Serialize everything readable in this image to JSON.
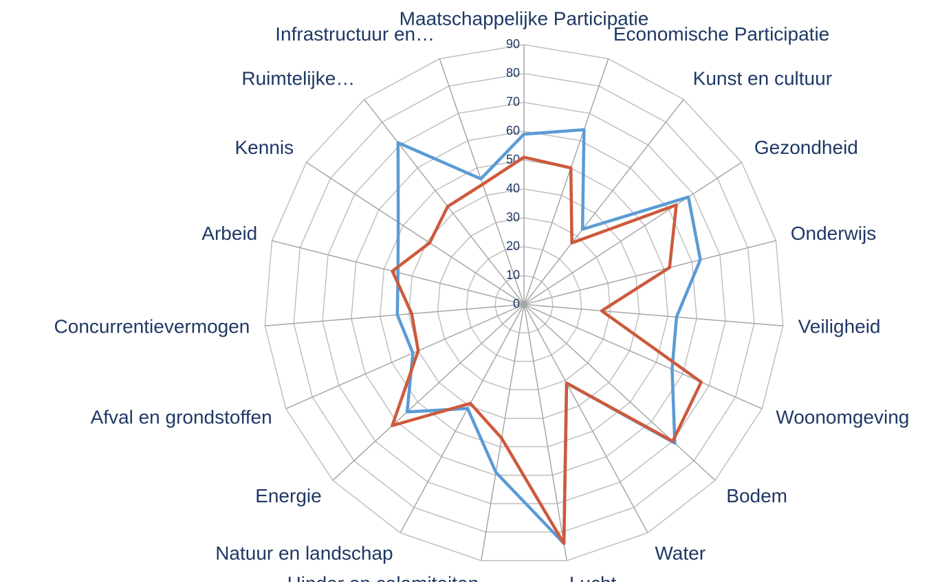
{
  "chart_data": {
    "type": "radar",
    "categories": [
      "Maatschappelijke Participatie",
      "Economische Participatie",
      "Kunst en cultuur",
      "Gezondheid",
      "Onderwijs",
      "Veiligheid",
      "Woonomgeving",
      "Bodem",
      "Water",
      "Lucht",
      "Hinder en calamiteiten",
      "Natuur en landschap",
      "Energie",
      "Afval en grondstoffen",
      "Concurrentievermogen",
      "Arbeid",
      "Kennis",
      "Ruimtelijke…",
      "Infrastructuur en…"
    ],
    "series": [
      {
        "color": "#5b9bd5",
        "values": [
          59,
          64,
          33,
          68,
          63,
          53,
          56,
          71,
          31,
          84,
          59,
          41,
          55,
          42,
          44,
          45,
          52,
          71,
          46
        ]
      },
      {
        "color": "#cc5a3c",
        "values": [
          51,
          50,
          27,
          63,
          52,
          27,
          67,
          70,
          31,
          84,
          47,
          39,
          62,
          40,
          39,
          47,
          39,
          43,
          44
        ]
      }
    ],
    "ylim": [
      0,
      90
    ],
    "yticks": [
      0,
      10,
      20,
      30,
      40,
      50,
      60,
      70,
      80,
      90
    ],
    "grid": true
  }
}
